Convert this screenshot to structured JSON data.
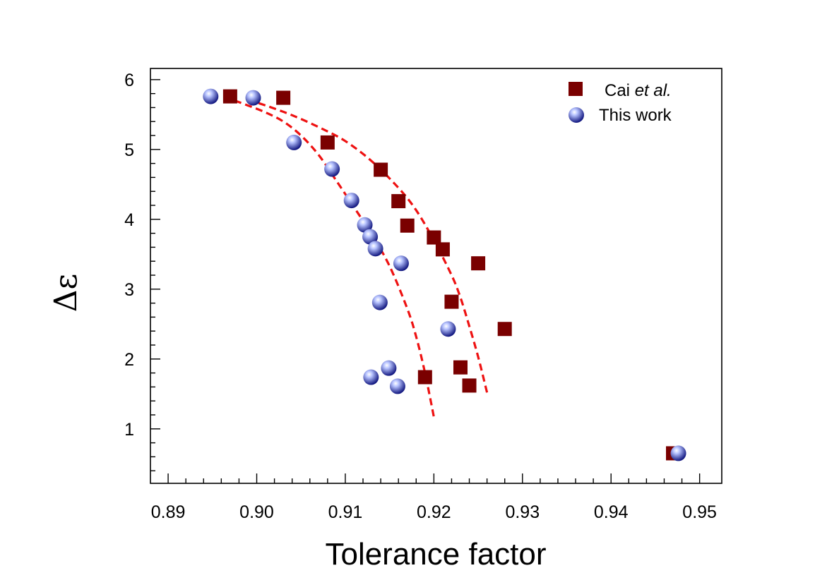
{
  "chart_data": {
    "type": "scatter",
    "xlabel": "Tolerance factor",
    "ylabel": "Δε",
    "xlim": [
      0.888,
      0.9525
    ],
    "ylim": [
      0.22,
      6.16
    ],
    "xticks": [
      0.89,
      0.9,
      0.91,
      0.92,
      0.93,
      0.94,
      0.95
    ],
    "xtick_labels": [
      "0.89",
      "0.90",
      "0.91",
      "0.92",
      "0.93",
      "0.94",
      "0.95"
    ],
    "x_minor_step": 0.002,
    "yticks": [
      1,
      2,
      3,
      4,
      5,
      6
    ],
    "ytick_labels": [
      "1",
      "2",
      "3",
      "4",
      "5",
      "6"
    ],
    "y_minor_step": 0.2,
    "grid": false,
    "legend_position": "top-right",
    "legend": [
      {
        "marker": "square",
        "label_prefix": "Cai ",
        "label_italic": "et al."
      },
      {
        "marker": "sphere",
        "label_prefix": "This work",
        "label_italic": ""
      }
    ],
    "colors": {
      "square": "#7a0000",
      "sphere": "#0a0f7a",
      "sphere_highlight": "#b8c4ff",
      "fit": "#ee1111"
    },
    "series": [
      {
        "name": "Cai et al.",
        "marker": "square",
        "x": [
          0.897,
          0.903,
          0.908,
          0.914,
          0.916,
          0.917,
          0.92,
          0.921,
          0.925,
          0.922,
          0.928,
          0.923,
          0.919,
          0.924,
          0.947
        ],
        "y": [
          5.76,
          5.74,
          5.1,
          4.71,
          4.26,
          3.91,
          3.74,
          3.57,
          3.37,
          2.82,
          2.43,
          1.88,
          1.74,
          1.62,
          0.65
        ]
      },
      {
        "name": "This work",
        "marker": "sphere",
        "x": [
          0.8948,
          0.8996,
          0.9042,
          0.9085,
          0.9107,
          0.9122,
          0.9128,
          0.9134,
          0.9163,
          0.9139,
          0.9216,
          0.9149,
          0.9129,
          0.9159,
          0.9476
        ],
        "y": [
          5.76,
          5.74,
          5.1,
          4.72,
          4.27,
          3.92,
          3.75,
          3.58,
          3.37,
          2.81,
          2.43,
          1.87,
          1.74,
          1.61,
          0.65
        ]
      }
    ],
    "fit_curves": [
      {
        "name": "fit-this-work",
        "x": [
          0.8975,
          0.899,
          0.901,
          0.903,
          0.905,
          0.907,
          0.909,
          0.911,
          0.913,
          0.915,
          0.917,
          0.918,
          0.919,
          0.92
        ],
        "y": [
          5.7,
          5.63,
          5.53,
          5.4,
          5.2,
          4.92,
          4.55,
          4.17,
          3.78,
          3.33,
          2.72,
          2.32,
          1.8,
          1.17
        ]
      },
      {
        "name": "fit-cai",
        "x": [
          0.899,
          0.901,
          0.904,
          0.907,
          0.91,
          0.913,
          0.916,
          0.918,
          0.92,
          0.922,
          0.923,
          0.924,
          0.925,
          0.926
        ],
        "y": [
          5.71,
          5.63,
          5.49,
          5.32,
          5.12,
          4.83,
          4.45,
          4.13,
          3.7,
          3.2,
          2.88,
          2.47,
          2.03,
          1.52
        ]
      }
    ]
  }
}
